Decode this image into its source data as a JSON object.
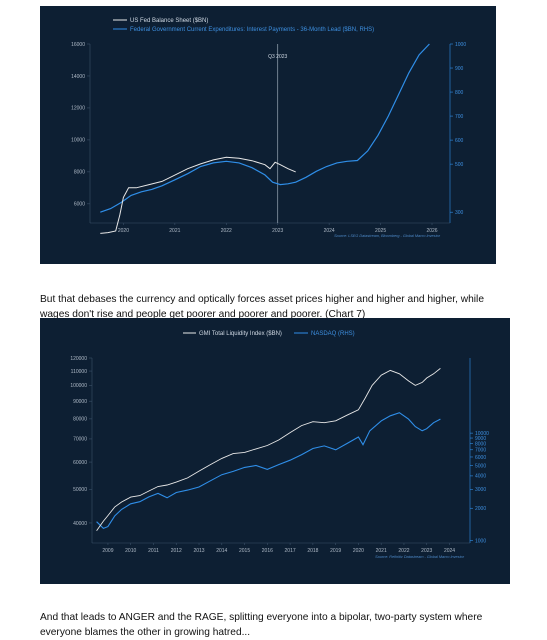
{
  "paragraphs": {
    "p1": "But that debases the currency and optically forces asset prices higher and higher and higher, while wages don't rise and people get poorer and poorer and poorer. (Chart 7)",
    "p2": "And that leads to ANGER and the RAGE, splitting everyone into a bipolar, two-party system where everyone blames the other in growing hatred..."
  },
  "colors": {
    "panel_bg": "#0d1f33",
    "white_series": "#e8e8e8",
    "blue_series": "#2f8ee8",
    "grid": "#23384f"
  },
  "chart_data": [
    {
      "type": "line",
      "legend": [
        "US Fed Balance Sheet ($BN)",
        "Federal Government Current Expenditures: Interest Payments - 36-Month Lead ($BN, RHS)"
      ],
      "annotation": "Q3 2023",
      "annotation_x": 2023.25,
      "source": "Source: LSEG Datastream, Bloomberg - Global Macro Investor",
      "x_ticks": [
        "2020",
        "2021",
        "2022",
        "2023",
        "2024",
        "2025",
        "2026"
      ],
      "y_ticks_left": [
        "6000",
        "8000",
        "10000",
        "12000",
        "14000",
        "16000"
      ],
      "y_ticks_right": [
        "300",
        "500",
        "600",
        "700",
        "800",
        "900",
        "1000"
      ],
      "ylim_left": [
        4800,
        16000
      ],
      "ylim_right": [
        255,
        1000
      ],
      "xlim": [
        2019.6,
        2026.6
      ],
      "series": [
        {
          "name": "US Fed Balance Sheet ($BN)",
          "axis": "left",
          "points": [
            [
              2019.8,
              4150
            ],
            [
              2019.95,
              4200
            ],
            [
              2020.1,
              4300
            ],
            [
              2020.18,
              5300
            ],
            [
              2020.25,
              6400
            ],
            [
              2020.35,
              7000
            ],
            [
              2020.5,
              7000
            ],
            [
              2020.75,
              7200
            ],
            [
              2021.0,
              7400
            ],
            [
              2021.25,
              7800
            ],
            [
              2021.5,
              8200
            ],
            [
              2021.75,
              8500
            ],
            [
              2022.0,
              8750
            ],
            [
              2022.25,
              8920
            ],
            [
              2022.5,
              8850
            ],
            [
              2022.75,
              8700
            ],
            [
              2023.0,
              8450
            ],
            [
              2023.1,
              8200
            ],
            [
              2023.2,
              8600
            ],
            [
              2023.3,
              8450
            ],
            [
              2023.45,
              8200
            ],
            [
              2023.6,
              8000
            ]
          ]
        },
        {
          "name": "Federal Government Current Expenditures: Interest Payments - 36-Month Lead ($BN, RHS)",
          "axis": "right",
          "points": [
            [
              2019.8,
              300
            ],
            [
              2020.0,
              315
            ],
            [
              2020.2,
              340
            ],
            [
              2020.4,
              370
            ],
            [
              2020.6,
              385
            ],
            [
              2020.8,
              395
            ],
            [
              2021.0,
              410
            ],
            [
              2021.25,
              435
            ],
            [
              2021.5,
              460
            ],
            [
              2021.75,
              490
            ],
            [
              2022.0,
              505
            ],
            [
              2022.25,
              512
            ],
            [
              2022.5,
              505
            ],
            [
              2022.75,
              485
            ],
            [
              2023.0,
              455
            ],
            [
              2023.15,
              425
            ],
            [
              2023.3,
              415
            ],
            [
              2023.45,
              418
            ],
            [
              2023.6,
              425
            ],
            [
              2023.8,
              445
            ],
            [
              2024.0,
              470
            ],
            [
              2024.2,
              490
            ],
            [
              2024.4,
              505
            ],
            [
              2024.6,
              512
            ],
            [
              2024.8,
              515
            ],
            [
              2025.0,
              555
            ],
            [
              2025.2,
              620
            ],
            [
              2025.4,
              700
            ],
            [
              2025.6,
              790
            ],
            [
              2025.8,
              880
            ],
            [
              2026.0,
              955
            ],
            [
              2026.2,
              1000
            ]
          ]
        }
      ]
    },
    {
      "type": "line",
      "legend": [
        "GMI Total Liquidity Index ($BN)",
        "NASDAQ (RHS)"
      ],
      "source": "Source: Refinitiv Datastream - Global Macro Investor",
      "x_ticks": [
        "2009",
        "2010",
        "2011",
        "2012",
        "2013",
        "2014",
        "2015",
        "2016",
        "2017",
        "2018",
        "2019",
        "2020",
        "2021",
        "2022",
        "2023",
        "2024"
      ],
      "y_ticks_left": [
        "40000",
        "50000",
        "60000",
        "70000",
        "80000",
        "90000",
        "100000",
        "110000",
        "120000"
      ],
      "y_ticks_right": [
        "1000",
        "2000",
        "3000",
        "4000",
        "5000",
        "6000",
        "7000",
        "8000",
        "9000",
        "10000"
      ],
      "ylim_left": [
        35000,
        120000
      ],
      "ylim_right": [
        950,
        50000
      ],
      "yscale": "log",
      "xlim": [
        2008.3,
        2024.9
      ],
      "series": [
        {
          "name": "GMI Total Liquidity Index ($BN)",
          "axis": "left",
          "points": [
            [
              2008.5,
              38000
            ],
            [
              2008.8,
              40500
            ],
            [
              2009.0,
              42000
            ],
            [
              2009.3,
              44500
            ],
            [
              2009.6,
              46000
            ],
            [
              2010.0,
              47500
            ],
            [
              2010.4,
              48000
            ],
            [
              2010.8,
              49500
            ],
            [
              2011.2,
              51000
            ],
            [
              2011.6,
              51500
            ],
            [
              2012.0,
              52500
            ],
            [
              2012.5,
              54000
            ],
            [
              2013.0,
              56500
            ],
            [
              2013.5,
              59000
            ],
            [
              2014.0,
              61500
            ],
            [
              2014.5,
              63500
            ],
            [
              2015.0,
              64000
            ],
            [
              2015.5,
              65500
            ],
            [
              2016.0,
              67000
            ],
            [
              2016.5,
              69500
            ],
            [
              2017.0,
              73000
            ],
            [
              2017.5,
              76500
            ],
            [
              2018.0,
              78500
            ],
            [
              2018.5,
              78000
            ],
            [
              2019.0,
              79000
            ],
            [
              2019.5,
              82000
            ],
            [
              2020.0,
              85000
            ],
            [
              2020.3,
              92000
            ],
            [
              2020.6,
              100000
            ],
            [
              2021.0,
              107000
            ],
            [
              2021.4,
              110500
            ],
            [
              2021.8,
              108000
            ],
            [
              2022.2,
              103000
            ],
            [
              2022.5,
              100000
            ],
            [
              2022.8,
              102000
            ],
            [
              2023.0,
              105000
            ],
            [
              2023.3,
              108000
            ],
            [
              2023.6,
              112000
            ]
          ]
        },
        {
          "name": "NASDAQ (RHS)",
          "axis": "right",
          "points": [
            [
              2008.5,
              1500
            ],
            [
              2008.8,
              1300
            ],
            [
              2009.0,
              1350
            ],
            [
              2009.3,
              1700
            ],
            [
              2009.6,
              1950
            ],
            [
              2010.0,
              2200
            ],
            [
              2010.4,
              2300
            ],
            [
              2010.8,
              2550
            ],
            [
              2011.2,
              2750
            ],
            [
              2011.6,
              2500
            ],
            [
              2012.0,
              2800
            ],
            [
              2012.5,
              2950
            ],
            [
              2013.0,
              3150
            ],
            [
              2013.5,
              3600
            ],
            [
              2014.0,
              4100
            ],
            [
              2014.5,
              4400
            ],
            [
              2015.0,
              4800
            ],
            [
              2015.5,
              5000
            ],
            [
              2016.0,
              4600
            ],
            [
              2016.5,
              5100
            ],
            [
              2017.0,
              5600
            ],
            [
              2017.5,
              6300
            ],
            [
              2018.0,
              7200
            ],
            [
              2018.5,
              7600
            ],
            [
              2019.0,
              7000
            ],
            [
              2019.5,
              8000
            ],
            [
              2020.0,
              9200
            ],
            [
              2020.2,
              7800
            ],
            [
              2020.5,
              10500
            ],
            [
              2021.0,
              13000
            ],
            [
              2021.4,
              14500
            ],
            [
              2021.8,
              15500
            ],
            [
              2022.2,
              13500
            ],
            [
              2022.5,
              11500
            ],
            [
              2022.8,
              10500
            ],
            [
              2023.0,
              11000
            ],
            [
              2023.3,
              12500
            ],
            [
              2023.6,
              13500
            ]
          ]
        }
      ]
    }
  ]
}
